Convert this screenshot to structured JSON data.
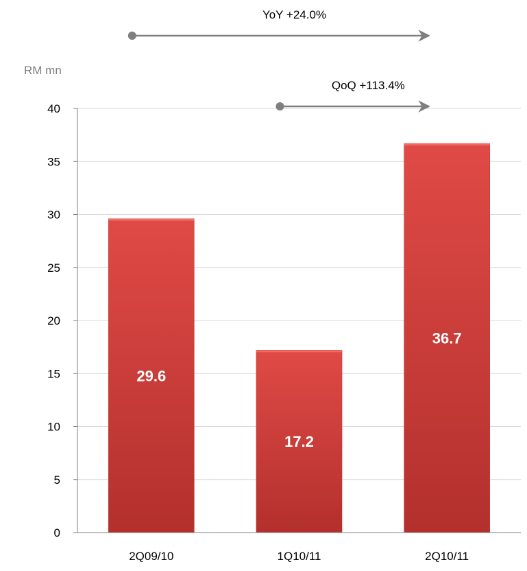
{
  "chart_data": {
    "type": "bar",
    "categories": [
      "2Q09/10",
      "1Q10/11",
      "2Q10/11"
    ],
    "values": [
      29.6,
      17.2,
      36.7
    ],
    "data_labels": [
      "29.6",
      "17.2",
      "36.7"
    ],
    "title": "",
    "xlabel": "",
    "ylabel": "RM mn",
    "ylim": [
      0,
      40
    ],
    "yticks": [
      0,
      5,
      10,
      15,
      20,
      25,
      30,
      35,
      40
    ],
    "grid": true,
    "bar_color": "#d23b38",
    "annotations": [
      {
        "label": "YoY +24.0%",
        "from_category": 0,
        "to_category": 2
      },
      {
        "label": "QoQ +113.4%",
        "from_category": 1,
        "to_category": 2
      }
    ]
  }
}
